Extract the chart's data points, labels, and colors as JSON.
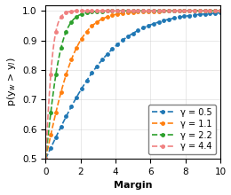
{
  "gammas": [
    0.5,
    1.1,
    2.2,
    4.4
  ],
  "colors": [
    "#1f77b4",
    "#ff7f0e",
    "#2ca02c",
    "#f08080"
  ],
  "labels": [
    "γ = 0.5",
    "γ = 1.1",
    "γ = 2.2",
    "γ = 4.4"
  ],
  "xlabel": "Margin",
  "ylabel": "p(y$_w$ > y$_l$)",
  "xlim": [
    0,
    10
  ],
  "ylim": [
    0.5,
    1.02
  ],
  "yticks": [
    0.5,
    0.6,
    0.7,
    0.8,
    0.9,
    1.0
  ],
  "xticks": [
    0,
    2,
    4,
    6,
    8,
    10
  ],
  "figsize": [
    2.6,
    2.2
  ],
  "dpi": 100,
  "grid": true,
  "marker": "o",
  "linestyle": "--",
  "markersize": 2.5,
  "linewidth": 1.2,
  "legend_loc": "lower right",
  "legend_fontsize": 7,
  "axis_fontsize": 8,
  "tick_fontsize": 7.5
}
